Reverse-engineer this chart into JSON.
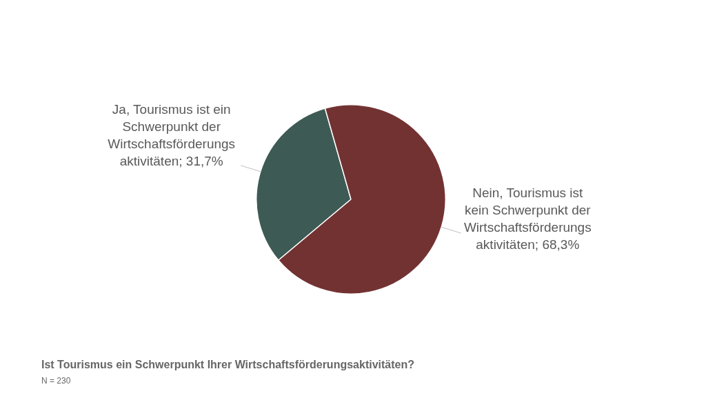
{
  "chart_data": {
    "type": "pie",
    "title": "Ist Tourismus ein Schwerpunkt Ihrer Wirtschaftsförderungsaktivitäten?",
    "annotations": [
      "N = 230"
    ],
    "categories": [
      "Ja, Tourismus ist ein Schwerpunkt der Wirtschaftsförderungs aktivitäten",
      "Nein, Tourismus ist kein Schwerpunkt der Wirtschaftsförderungs aktivitäten"
    ],
    "values": [
      31.7,
      68.3
    ],
    "value_labels": [
      "31,7%",
      "68,3%"
    ],
    "colors": [
      "#3e5a55",
      "#733232"
    ],
    "legend": false
  }
}
